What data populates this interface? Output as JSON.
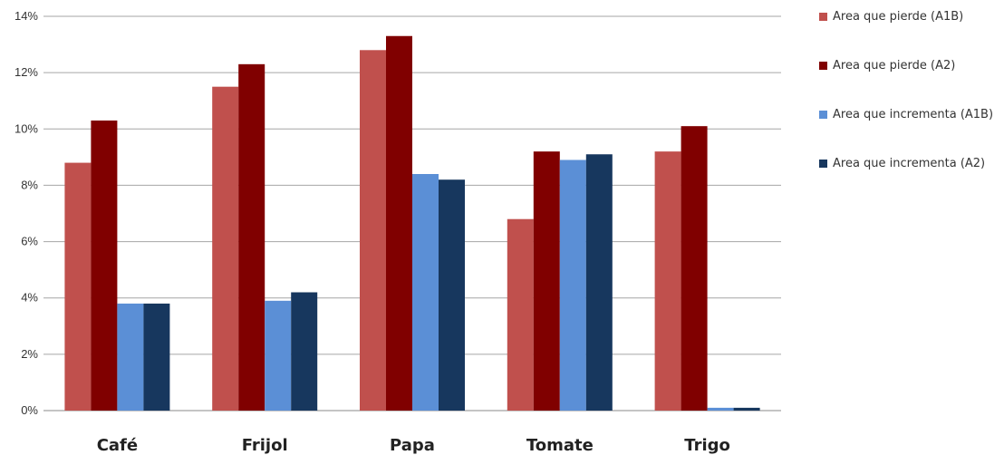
{
  "chart_data": {
    "type": "bar",
    "title": "",
    "xlabel": "",
    "ylabel": "",
    "categories": [
      "Café",
      "Frijol",
      "Papa",
      "Tomate",
      "Trigo"
    ],
    "ylim": [
      0,
      14
    ],
    "yticks": [
      0,
      2,
      4,
      6,
      8,
      10,
      12,
      14
    ],
    "ytick_labels": [
      "0%",
      "2%",
      "4%",
      "6%",
      "8%",
      "10%",
      "12%",
      "14%"
    ],
    "grid": true,
    "legend_position": "right",
    "series": [
      {
        "name": "Area que pierde (A1B)",
        "color": "#c0504d",
        "values": [
          8.8,
          11.5,
          12.8,
          6.8,
          9.2
        ]
      },
      {
        "name": "Area que pierde (A2)",
        "color": "#800000",
        "values": [
          10.3,
          12.3,
          13.3,
          9.2,
          10.1
        ]
      },
      {
        "name": "Area que incrementa (A1B)",
        "color": "#5b8fd6",
        "values": [
          3.8,
          3.9,
          8.4,
          8.9,
          0.1
        ]
      },
      {
        "name": "Area que incrementa (A2)",
        "color": "#17375e",
        "values": [
          3.8,
          4.2,
          8.2,
          9.1,
          0.1
        ]
      }
    ]
  }
}
